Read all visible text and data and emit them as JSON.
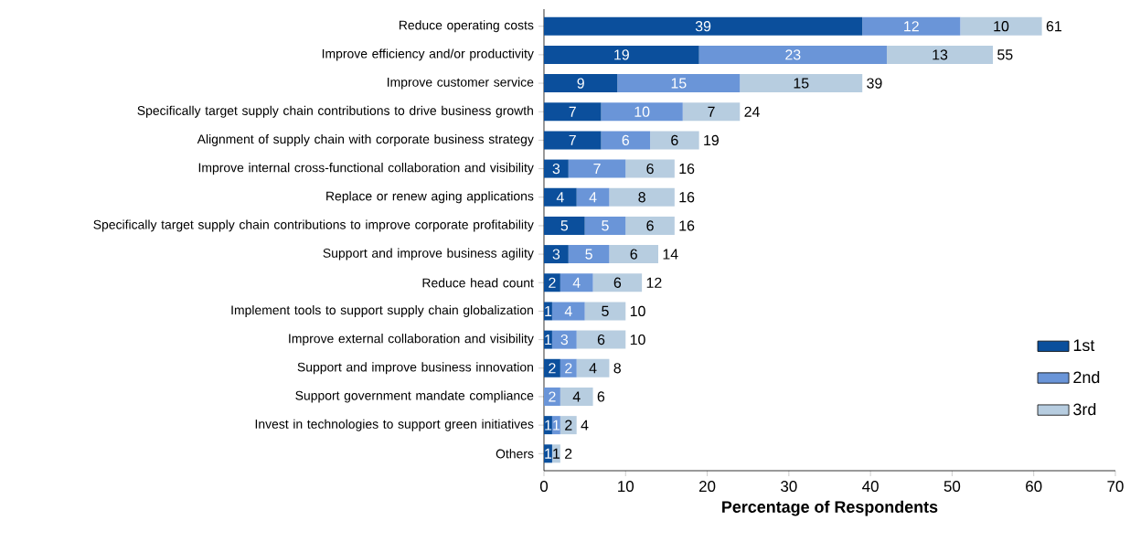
{
  "chart_data": {
    "type": "bar",
    "orientation": "horizontal",
    "stacked": true,
    "categories": [
      "Reduce operating costs",
      "Improve efficiency and/or productivity",
      "Improve customer service",
      "Specifically target supply chain contributions to drive business growth",
      "Alignment of supply chain with corporate business strategy",
      "Improve internal cross-functional collaboration and visibility",
      "Replace or renew aging applications",
      "Specifically target supply chain contributions to improve corporate profitability",
      "Support and improve business agility",
      "Reduce head count",
      "Implement tools to support supply chain globalization",
      "Improve external collaboration and visibility",
      "Support and improve business innovation",
      "Support government mandate compliance",
      "Invest in technologies to support green initiatives",
      "Others"
    ],
    "series": [
      {
        "name": "1st",
        "color": "#0b4f9c",
        "values": [
          39,
          19,
          9,
          7,
          7,
          3,
          4,
          5,
          3,
          2,
          1,
          1,
          2,
          0,
          1,
          1
        ],
        "value_labels": [
          "39",
          "19",
          "9",
          "7",
          "7",
          "3",
          "4",
          "5",
          "3",
          "2",
          "1",
          "1",
          "2",
          null,
          "1",
          "1"
        ]
      },
      {
        "name": "2nd",
        "color": "#6a95d8",
        "values": [
          12,
          23,
          15,
          10,
          6,
          7,
          4,
          5,
          5,
          4,
          4,
          3,
          2,
          2,
          1,
          0
        ],
        "value_labels": [
          "12",
          "23",
          "15",
          "10",
          "6",
          "7",
          "4",
          "5",
          "5",
          "4",
          "4",
          "3",
          "2",
          "2",
          "1",
          null
        ]
      },
      {
        "name": "3rd",
        "color": "#b7cde0",
        "values": [
          10,
          13,
          15,
          7,
          6,
          6,
          8,
          6,
          6,
          6,
          5,
          6,
          4,
          4,
          2,
          1
        ],
        "value_labels": [
          "10",
          "13",
          "15",
          "7",
          "6",
          "6",
          "8",
          "6",
          "6",
          "6",
          "5",
          "6",
          "4",
          "4",
          "2",
          "1"
        ]
      }
    ],
    "totals": [
      "61",
      "55",
      "39",
      "24",
      "19",
      "16",
      "16",
      "16",
      "14",
      "12",
      "10",
      "10",
      "8",
      "6",
      "4",
      "2"
    ],
    "xlim": [
      0,
      70
    ],
    "xticks": [
      0,
      10,
      20,
      30,
      40,
      50,
      60,
      70
    ],
    "xlabel": "Percentage of Respondents",
    "legend": "bottom right"
  }
}
